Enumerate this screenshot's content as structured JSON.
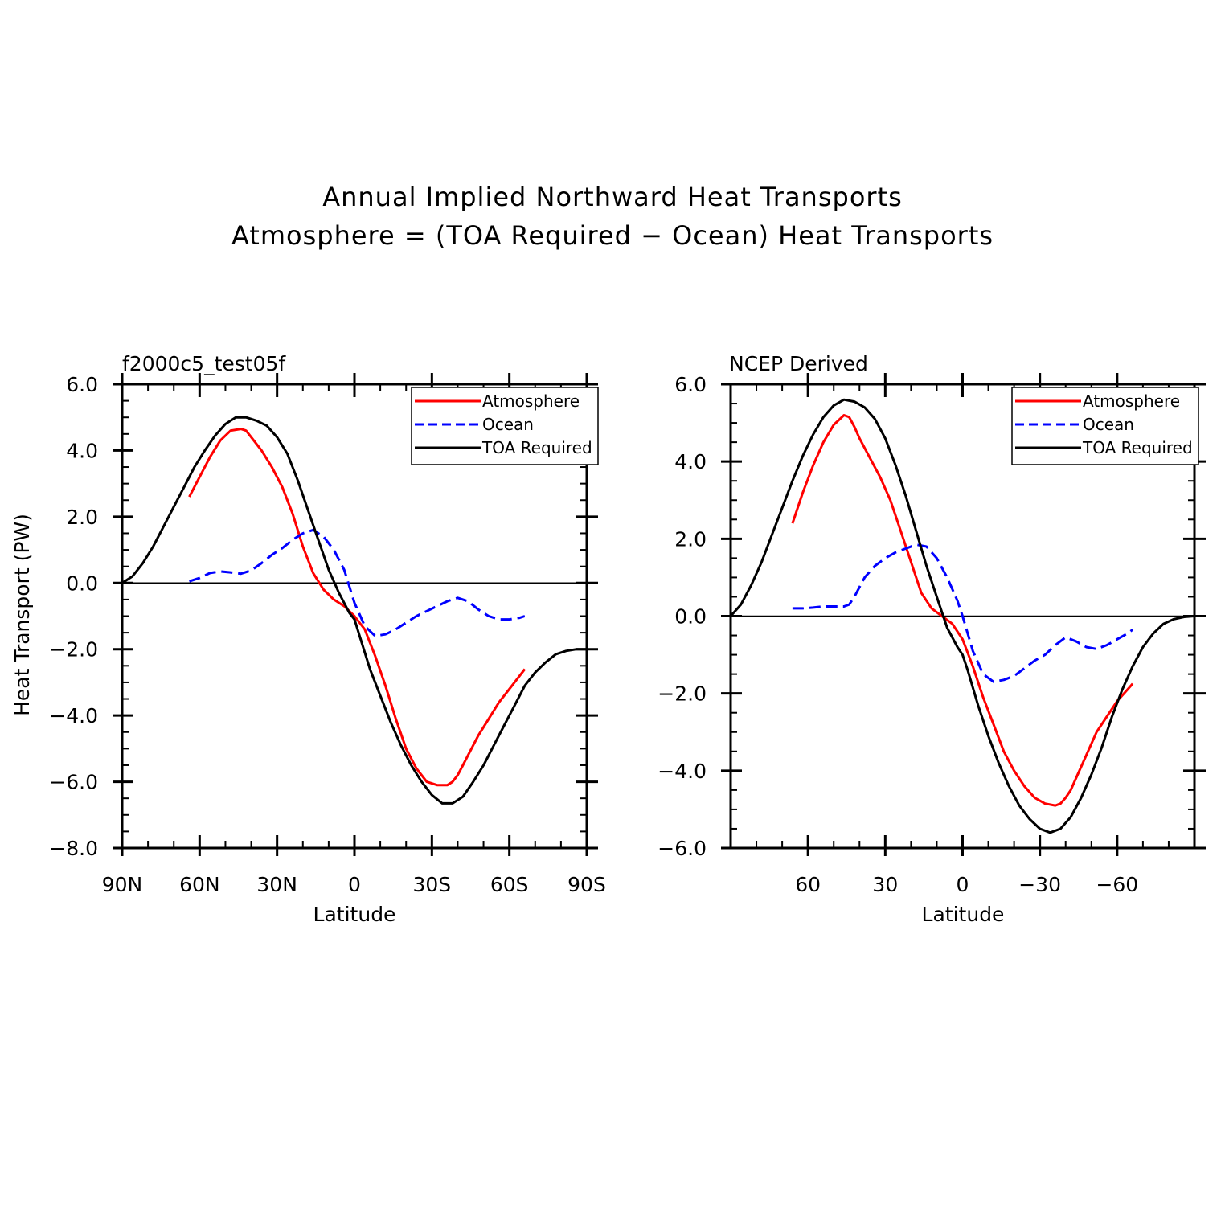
{
  "title": {
    "line1": "Annual Implied Northward Heat Transports",
    "line2": "Atmosphere = (TOA Required − Ocean) Heat Transports"
  },
  "chart_data": [
    {
      "type": "line",
      "title": "f2000c5_test05f",
      "xlabel": "Latitude",
      "ylabel": "Heat Transport (PW)",
      "xlim": [
        90,
        -90
      ],
      "ylim": [
        -8,
        6
      ],
      "xticks": [
        90,
        60,
        30,
        0,
        -30,
        -60,
        -90
      ],
      "xtick_labels": [
        "90N",
        "60N",
        "30N",
        "0",
        "30S",
        "60S",
        "90S"
      ],
      "yticks": [
        6,
        4,
        2,
        0,
        -2,
        -4,
        -6,
        -8
      ],
      "ytick_labels": [
        "6.0",
        "4.0",
        "2.0",
        "0.0",
        "−2.0",
        "−4.0",
        "−6.0",
        "−8.0"
      ],
      "legend_position": "top-right",
      "series": [
        {
          "name": "Atmosphere",
          "color": "#ff0000",
          "style": "solid",
          "x": [
            64,
            60,
            56,
            52,
            48,
            44,
            42,
            40,
            36,
            32,
            28,
            24,
            20,
            16,
            12,
            8,
            4,
            0,
            -4,
            -8,
            -12,
            -16,
            -20,
            -24,
            -28,
            -32,
            -36,
            -38,
            -40,
            -42,
            -44,
            -48,
            -52,
            -56,
            -60,
            -64,
            -66
          ],
          "values": [
            2.6,
            3.2,
            3.8,
            4.3,
            4.6,
            4.65,
            4.6,
            4.4,
            4.0,
            3.5,
            2.9,
            2.1,
            1.1,
            0.3,
            -0.2,
            -0.5,
            -0.7,
            -1.0,
            -1.4,
            -2.2,
            -3.1,
            -4.1,
            -5.0,
            -5.6,
            -6.0,
            -6.1,
            -6.1,
            -6.0,
            -5.8,
            -5.5,
            -5.2,
            -4.6,
            -4.1,
            -3.6,
            -3.2,
            -2.8,
            -2.6
          ]
        },
        {
          "name": "Ocean",
          "color": "#0000ff",
          "style": "dashed",
          "x": [
            64,
            60,
            56,
            52,
            48,
            44,
            40,
            36,
            32,
            28,
            24,
            20,
            16,
            12,
            8,
            4,
            0,
            -4,
            -8,
            -12,
            -16,
            -20,
            -24,
            -28,
            -32,
            -36,
            -40,
            -44,
            -48,
            -52,
            -56,
            -60,
            -64,
            -66
          ],
          "values": [
            0.05,
            0.15,
            0.3,
            0.35,
            0.32,
            0.28,
            0.38,
            0.6,
            0.85,
            1.05,
            1.3,
            1.5,
            1.6,
            1.4,
            1.0,
            0.4,
            -0.6,
            -1.3,
            -1.6,
            -1.55,
            -1.4,
            -1.2,
            -1.0,
            -0.85,
            -0.7,
            -0.55,
            -0.45,
            -0.55,
            -0.8,
            -1.0,
            -1.1,
            -1.1,
            -1.05,
            -1.0
          ]
        },
        {
          "name": "TOA Required",
          "color": "#000000",
          "style": "solid",
          "x": [
            90,
            86,
            82,
            78,
            74,
            70,
            66,
            62,
            58,
            54,
            50,
            46,
            42,
            38,
            34,
            30,
            26,
            22,
            18,
            14,
            10,
            6,
            2,
            0,
            -2,
            -6,
            -10,
            -14,
            -18,
            -22,
            -26,
            -30,
            -34,
            -38,
            -42,
            -46,
            -50,
            -54,
            -58,
            -62,
            -66,
            -70,
            -74,
            -78,
            -82,
            -86,
            -90
          ],
          "values": [
            0.0,
            0.2,
            0.6,
            1.1,
            1.7,
            2.3,
            2.9,
            3.5,
            4.0,
            4.45,
            4.8,
            5.0,
            5.0,
            4.9,
            4.75,
            4.4,
            3.9,
            3.1,
            2.2,
            1.3,
            0.4,
            -0.3,
            -0.9,
            -1.1,
            -1.6,
            -2.6,
            -3.4,
            -4.2,
            -4.9,
            -5.5,
            -6.0,
            -6.4,
            -6.65,
            -6.65,
            -6.45,
            -6.0,
            -5.5,
            -4.9,
            -4.3,
            -3.7,
            -3.1,
            -2.7,
            -2.4,
            -2.15,
            -2.05,
            -2.0,
            -2.0
          ]
        }
      ]
    },
    {
      "type": "line",
      "title": "NCEP Derived",
      "xlabel": "Latitude",
      "ylabel": "",
      "xlim": [
        90,
        -90
      ],
      "ylim": [
        -6,
        6
      ],
      "xticks": [
        60,
        30,
        0,
        -30,
        -60
      ],
      "xtick_labels": [
        "60",
        "30",
        "0",
        "−30",
        "−60"
      ],
      "yticks": [
        6,
        4,
        2,
        0,
        -2,
        -4,
        -6
      ],
      "ytick_labels": [
        "6.0",
        "4.0",
        "2.0",
        "0.0",
        "−2.0",
        "−4.0",
        "−6.0"
      ],
      "legend_position": "top-right",
      "series": [
        {
          "name": "Atmosphere",
          "color": "#ff0000",
          "style": "solid",
          "x": [
            66,
            62,
            58,
            54,
            50,
            46,
            44,
            42,
            40,
            36,
            32,
            28,
            24,
            20,
            16,
            12,
            8,
            4,
            0,
            -4,
            -8,
            -12,
            -16,
            -20,
            -24,
            -28,
            -32,
            -36,
            -38,
            -40,
            -42,
            -44,
            -48,
            -52,
            -56,
            -60,
            -64,
            -66
          ],
          "values": [
            2.4,
            3.2,
            3.9,
            4.5,
            4.95,
            5.2,
            5.15,
            4.9,
            4.6,
            4.1,
            3.6,
            3.0,
            2.2,
            1.4,
            0.6,
            0.2,
            0.0,
            -0.2,
            -0.6,
            -1.3,
            -2.1,
            -2.8,
            -3.5,
            -4.0,
            -4.4,
            -4.7,
            -4.85,
            -4.9,
            -4.85,
            -4.7,
            -4.5,
            -4.2,
            -3.6,
            -3.0,
            -2.6,
            -2.2,
            -1.9,
            -1.75
          ]
        },
        {
          "name": "Ocean",
          "color": "#0000ff",
          "style": "dashed",
          "x": [
            66,
            62,
            58,
            54,
            50,
            46,
            44,
            42,
            38,
            34,
            30,
            26,
            22,
            18,
            14,
            10,
            6,
            2,
            0,
            -4,
            -8,
            -12,
            -16,
            -20,
            -24,
            -28,
            -32,
            -36,
            -40,
            -44,
            -48,
            -52,
            -56,
            -60,
            -64,
            -66
          ],
          "values": [
            0.2,
            0.2,
            0.22,
            0.25,
            0.25,
            0.25,
            0.3,
            0.5,
            1.0,
            1.3,
            1.5,
            1.65,
            1.75,
            1.85,
            1.8,
            1.5,
            1.0,
            0.4,
            0.0,
            -0.9,
            -1.5,
            -1.7,
            -1.65,
            -1.55,
            -1.35,
            -1.15,
            -1.0,
            -0.75,
            -0.55,
            -0.65,
            -0.8,
            -0.85,
            -0.75,
            -0.6,
            -0.45,
            -0.35
          ]
        },
        {
          "name": "TOA Required",
          "color": "#000000",
          "style": "solid",
          "x": [
            90,
            86,
            82,
            78,
            74,
            70,
            66,
            62,
            58,
            54,
            50,
            46,
            42,
            38,
            34,
            30,
            26,
            22,
            18,
            14,
            10,
            6,
            2,
            0,
            -2,
            -6,
            -10,
            -14,
            -18,
            -22,
            -26,
            -30,
            -34,
            -38,
            -42,
            -46,
            -50,
            -54,
            -58,
            -62,
            -66,
            -70,
            -74,
            -78,
            -82,
            -86,
            -90
          ],
          "values": [
            0.0,
            0.3,
            0.8,
            1.4,
            2.1,
            2.8,
            3.5,
            4.15,
            4.7,
            5.15,
            5.45,
            5.6,
            5.55,
            5.4,
            5.1,
            4.6,
            3.9,
            3.1,
            2.2,
            1.3,
            0.5,
            -0.3,
            -0.8,
            -1.0,
            -1.4,
            -2.3,
            -3.1,
            -3.8,
            -4.4,
            -4.9,
            -5.25,
            -5.5,
            -5.6,
            -5.5,
            -5.2,
            -4.7,
            -4.1,
            -3.4,
            -2.6,
            -1.9,
            -1.3,
            -0.8,
            -0.45,
            -0.2,
            -0.08,
            -0.02,
            0.0
          ]
        }
      ]
    }
  ]
}
